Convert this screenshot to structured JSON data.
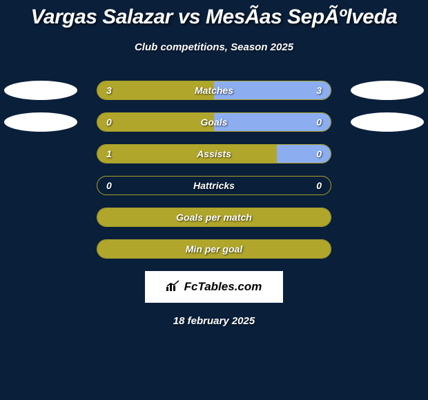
{
  "title": "Vargas Salazar vs MesÃ­as SepÃºlveda",
  "subtitle": "Club competitions, Season 2025",
  "date": "18 february 2025",
  "branding": "FcTables.com",
  "colors": {
    "background": "#0a1f3a",
    "fill_left": "#b0a62b",
    "fill_right": "#8caef0",
    "border": "#a8a02a",
    "text": "#ffffff"
  },
  "rows": [
    {
      "label": "Matches",
      "left_val": "3",
      "right_val": "3",
      "left_pct": 50,
      "right_pct": 50,
      "has_avatars": true
    },
    {
      "label": "Goals",
      "left_val": "0",
      "right_val": "0",
      "left_pct": 50,
      "right_pct": 50,
      "has_avatars": true
    },
    {
      "label": "Assists",
      "left_val": "1",
      "right_val": "0",
      "left_pct": 77,
      "right_pct": 23,
      "has_avatars": false
    },
    {
      "label": "Hattricks",
      "left_val": "0",
      "right_val": "0",
      "left_pct": 0,
      "right_pct": 0,
      "has_avatars": false
    },
    {
      "label": "Goals per match",
      "left_val": "",
      "right_val": "",
      "left_pct": 100,
      "right_pct": 0,
      "has_avatars": false
    },
    {
      "label": "Min per goal",
      "left_val": "",
      "right_val": "",
      "left_pct": 100,
      "right_pct": 0,
      "has_avatars": false
    }
  ]
}
